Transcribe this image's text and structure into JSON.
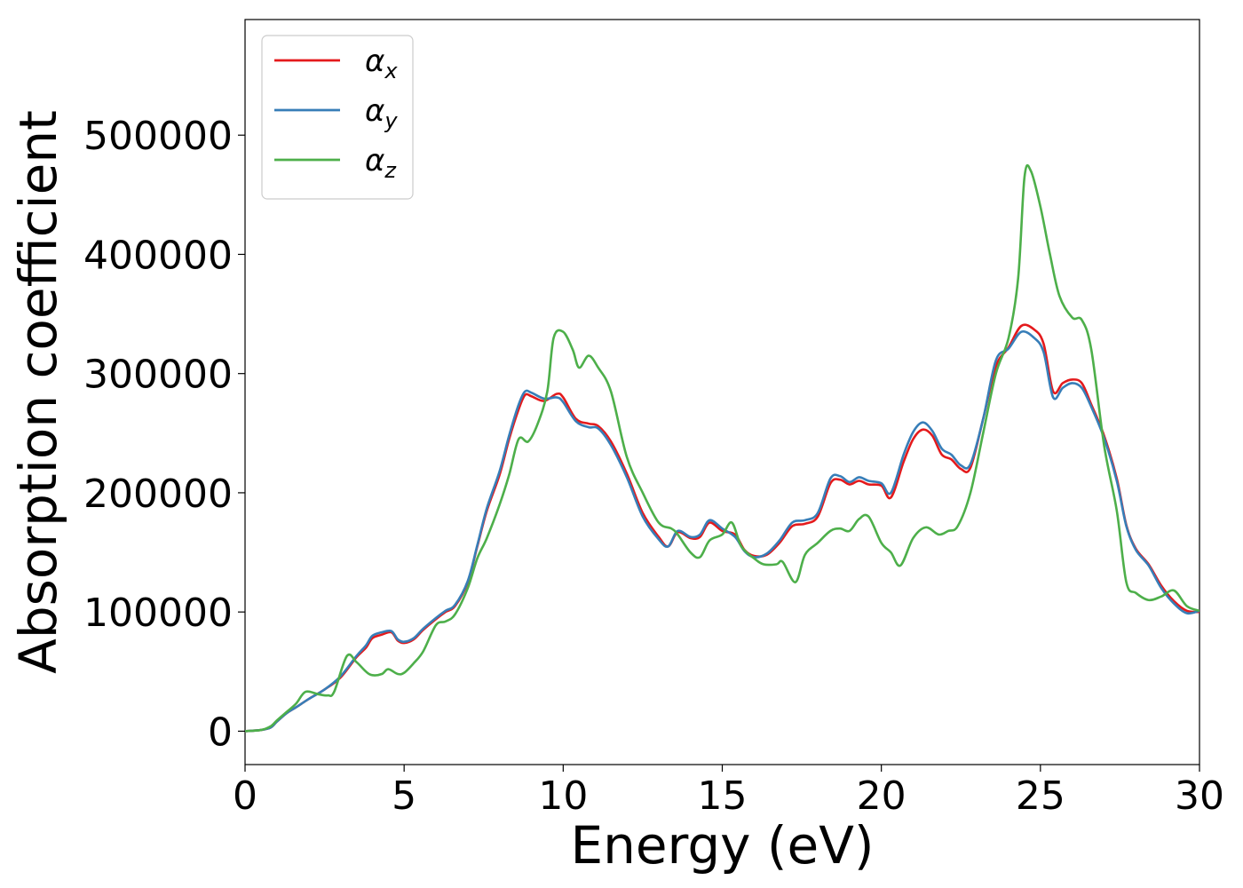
{
  "chart_data": {
    "type": "line",
    "title": "",
    "xlabel": "Energy (eV)",
    "ylabel": "Absorption coefficient",
    "xlim": [
      0,
      30
    ],
    "ylim": [
      -28000,
      597000
    ],
    "xticks": [
      0,
      5,
      10,
      15,
      20,
      25,
      30
    ],
    "yticks": [
      0,
      100000,
      200000,
      300000,
      400000,
      500000
    ],
    "grid": false,
    "legend_position": "top-left",
    "series": [
      {
        "name": "α_x",
        "symbol": "α",
        "subscript": "x",
        "color": "#e41a1c",
        "points": [
          [
            0,
            0
          ],
          [
            0.5,
            1000
          ],
          [
            0.8,
            3000
          ],
          [
            1,
            8000
          ],
          [
            1.3,
            15000
          ],
          [
            1.6,
            20000
          ],
          [
            2,
            27000
          ],
          [
            2.5,
            35000
          ],
          [
            3,
            45000
          ],
          [
            3.5,
            62000
          ],
          [
            3.8,
            70000
          ],
          [
            4,
            78000
          ],
          [
            4.3,
            81000
          ],
          [
            4.6,
            83000
          ],
          [
            4.8,
            76000
          ],
          [
            5,
            74000
          ],
          [
            5.3,
            77000
          ],
          [
            5.6,
            85000
          ],
          [
            6,
            94000
          ],
          [
            6.3,
            100000
          ],
          [
            6.6,
            105000
          ],
          [
            7,
            125000
          ],
          [
            7.3,
            155000
          ],
          [
            7.6,
            185000
          ],
          [
            8,
            215000
          ],
          [
            8.3,
            245000
          ],
          [
            8.6,
            270000
          ],
          [
            8.8,
            282000
          ],
          [
            9,
            281000
          ],
          [
            9.4,
            277000
          ],
          [
            9.8,
            283000
          ],
          [
            10,
            280000
          ],
          [
            10.4,
            262000
          ],
          [
            10.8,
            258000
          ],
          [
            11.1,
            256000
          ],
          [
            11.5,
            243000
          ],
          [
            12,
            216000
          ],
          [
            12.5,
            183000
          ],
          [
            13,
            163000
          ],
          [
            13.3,
            155000
          ],
          [
            13.6,
            167000
          ],
          [
            14,
            162000
          ],
          [
            14.3,
            163000
          ],
          [
            14.6,
            175000
          ],
          [
            15,
            168000
          ],
          [
            15.4,
            165000
          ],
          [
            15.7,
            152000
          ],
          [
            16,
            147000
          ],
          [
            16.4,
            148000
          ],
          [
            16.8,
            158000
          ],
          [
            17.2,
            172000
          ],
          [
            17.6,
            174000
          ],
          [
            18,
            180000
          ],
          [
            18.4,
            208000
          ],
          [
            18.7,
            211000
          ],
          [
            19,
            207000
          ],
          [
            19.3,
            210000
          ],
          [
            19.6,
            207000
          ],
          [
            20,
            206000
          ],
          [
            20.3,
            196000
          ],
          [
            20.7,
            226000
          ],
          [
            21,
            245000
          ],
          [
            21.3,
            253000
          ],
          [
            21.6,
            248000
          ],
          [
            21.9,
            232000
          ],
          [
            22.2,
            228000
          ],
          [
            22.5,
            220000
          ],
          [
            22.8,
            221000
          ],
          [
            23.2,
            262000
          ],
          [
            23.6,
            306000
          ],
          [
            24,
            322000
          ],
          [
            24.4,
            340000
          ],
          [
            24.8,
            337000
          ],
          [
            25.1,
            325000
          ],
          [
            25.4,
            285000
          ],
          [
            25.7,
            292000
          ],
          [
            26,
            295000
          ],
          [
            26.3,
            292000
          ],
          [
            26.6,
            274000
          ],
          [
            27,
            248000
          ],
          [
            27.4,
            212000
          ],
          [
            27.7,
            173000
          ],
          [
            28,
            153000
          ],
          [
            28.4,
            140000
          ],
          [
            28.8,
            122000
          ],
          [
            29.2,
            109000
          ],
          [
            29.6,
            101000
          ],
          [
            30,
            100000
          ]
        ]
      },
      {
        "name": "α_y",
        "symbol": "α",
        "subscript": "y",
        "color": "#377eb8",
        "points": [
          [
            0,
            0
          ],
          [
            0.5,
            1000
          ],
          [
            0.8,
            3000
          ],
          [
            1,
            8000
          ],
          [
            1.3,
            15000
          ],
          [
            1.6,
            20000
          ],
          [
            2,
            27000
          ],
          [
            2.5,
            35000
          ],
          [
            3,
            46000
          ],
          [
            3.5,
            63000
          ],
          [
            3.8,
            72000
          ],
          [
            4,
            80000
          ],
          [
            4.3,
            83000
          ],
          [
            4.6,
            84000
          ],
          [
            4.8,
            77000
          ],
          [
            5,
            75000
          ],
          [
            5.3,
            78000
          ],
          [
            5.6,
            86000
          ],
          [
            6,
            95000
          ],
          [
            6.3,
            101000
          ],
          [
            6.6,
            106000
          ],
          [
            7,
            126000
          ],
          [
            7.3,
            156000
          ],
          [
            7.6,
            187000
          ],
          [
            8,
            218000
          ],
          [
            8.3,
            248000
          ],
          [
            8.6,
            274000
          ],
          [
            8.8,
            285000
          ],
          [
            9,
            284000
          ],
          [
            9.4,
            279000
          ],
          [
            9.8,
            280000
          ],
          [
            10,
            276000
          ],
          [
            10.4,
            260000
          ],
          [
            10.8,
            255000
          ],
          [
            11.1,
            254000
          ],
          [
            11.5,
            240000
          ],
          [
            12,
            213000
          ],
          [
            12.5,
            180000
          ],
          [
            13,
            161000
          ],
          [
            13.3,
            155000
          ],
          [
            13.6,
            168000
          ],
          [
            14,
            163000
          ],
          [
            14.3,
            165000
          ],
          [
            14.6,
            177000
          ],
          [
            15,
            170000
          ],
          [
            15.4,
            163000
          ],
          [
            15.7,
            151000
          ],
          [
            16,
            146000
          ],
          [
            16.4,
            149000
          ],
          [
            16.8,
            160000
          ],
          [
            17.2,
            175000
          ],
          [
            17.6,
            177000
          ],
          [
            18,
            183000
          ],
          [
            18.4,
            212000
          ],
          [
            18.7,
            214000
          ],
          [
            19,
            209000
          ],
          [
            19.3,
            213000
          ],
          [
            19.6,
            210000
          ],
          [
            20,
            208000
          ],
          [
            20.3,
            200000
          ],
          [
            20.7,
            232000
          ],
          [
            21,
            251000
          ],
          [
            21.3,
            259000
          ],
          [
            21.6,
            252000
          ],
          [
            21.9,
            237000
          ],
          [
            22.2,
            232000
          ],
          [
            22.5,
            223000
          ],
          [
            22.8,
            224000
          ],
          [
            23.2,
            262000
          ],
          [
            23.6,
            311000
          ],
          [
            24,
            321000
          ],
          [
            24.4,
            335000
          ],
          [
            24.8,
            330000
          ],
          [
            25.1,
            318000
          ],
          [
            25.4,
            280000
          ],
          [
            25.7,
            288000
          ],
          [
            26,
            292000
          ],
          [
            26.3,
            288000
          ],
          [
            26.6,
            272000
          ],
          [
            27,
            246000
          ],
          [
            27.4,
            210000
          ],
          [
            27.7,
            172000
          ],
          [
            28,
            152000
          ],
          [
            28.4,
            139000
          ],
          [
            28.8,
            120000
          ],
          [
            29.2,
            107000
          ],
          [
            29.6,
            99000
          ],
          [
            30,
            101000
          ]
        ]
      },
      {
        "name": "α_z",
        "symbol": "α",
        "subscript": "z",
        "color": "#4daf4a",
        "points": [
          [
            0,
            0
          ],
          [
            0.5,
            1000
          ],
          [
            0.8,
            4000
          ],
          [
            1,
            9000
          ],
          [
            1.3,
            16000
          ],
          [
            1.6,
            23000
          ],
          [
            1.9,
            33000
          ],
          [
            2.3,
            31000
          ],
          [
            2.6,
            30000
          ],
          [
            2.8,
            33000
          ],
          [
            3.2,
            63000
          ],
          [
            3.5,
            58000
          ],
          [
            3.8,
            50000
          ],
          [
            4,
            47000
          ],
          [
            4.3,
            48000
          ],
          [
            4.5,
            52000
          ],
          [
            4.8,
            48000
          ],
          [
            5,
            49000
          ],
          [
            5.3,
            57000
          ],
          [
            5.6,
            67000
          ],
          [
            6,
            89000
          ],
          [
            6.3,
            92000
          ],
          [
            6.6,
            98000
          ],
          [
            7,
            120000
          ],
          [
            7.3,
            145000
          ],
          [
            7.6,
            162000
          ],
          [
            8,
            190000
          ],
          [
            8.3,
            215000
          ],
          [
            8.6,
            245000
          ],
          [
            8.9,
            243000
          ],
          [
            9.2,
            258000
          ],
          [
            9.5,
            285000
          ],
          [
            9.7,
            330000
          ],
          [
            10,
            335000
          ],
          [
            10.3,
            320000
          ],
          [
            10.5,
            305000
          ],
          [
            10.8,
            315000
          ],
          [
            11.1,
            305000
          ],
          [
            11.5,
            285000
          ],
          [
            12,
            230000
          ],
          [
            12.5,
            200000
          ],
          [
            13,
            175000
          ],
          [
            13.4,
            170000
          ],
          [
            13.6,
            165000
          ],
          [
            14,
            150000
          ],
          [
            14.3,
            146000
          ],
          [
            14.6,
            160000
          ],
          [
            15,
            165000
          ],
          [
            15.3,
            175000
          ],
          [
            15.6,
            155000
          ],
          [
            16,
            145000
          ],
          [
            16.3,
            140000
          ],
          [
            16.7,
            140000
          ],
          [
            16.9,
            142000
          ],
          [
            17.3,
            125000
          ],
          [
            17.6,
            148000
          ],
          [
            18,
            158000
          ],
          [
            18.4,
            168000
          ],
          [
            18.7,
            170000
          ],
          [
            19,
            168000
          ],
          [
            19.3,
            178000
          ],
          [
            19.6,
            180000
          ],
          [
            20,
            158000
          ],
          [
            20.3,
            150000
          ],
          [
            20.6,
            139000
          ],
          [
            21,
            162000
          ],
          [
            21.4,
            171000
          ],
          [
            21.8,
            165000
          ],
          [
            22.1,
            168000
          ],
          [
            22.4,
            172000
          ],
          [
            22.8,
            200000
          ],
          [
            23.2,
            250000
          ],
          [
            23.6,
            300000
          ],
          [
            24,
            330000
          ],
          [
            24.3,
            380000
          ],
          [
            24.5,
            465000
          ],
          [
            24.7,
            470000
          ],
          [
            25,
            440000
          ],
          [
            25.3,
            400000
          ],
          [
            25.6,
            365000
          ],
          [
            26,
            347000
          ],
          [
            26.3,
            345000
          ],
          [
            26.6,
            320000
          ],
          [
            27,
            240000
          ],
          [
            27.4,
            185000
          ],
          [
            27.7,
            125000
          ],
          [
            28,
            116000
          ],
          [
            28.4,
            110000
          ],
          [
            28.8,
            113000
          ],
          [
            29.2,
            118000
          ],
          [
            29.6,
            105000
          ],
          [
            30,
            101000
          ]
        ]
      }
    ]
  }
}
